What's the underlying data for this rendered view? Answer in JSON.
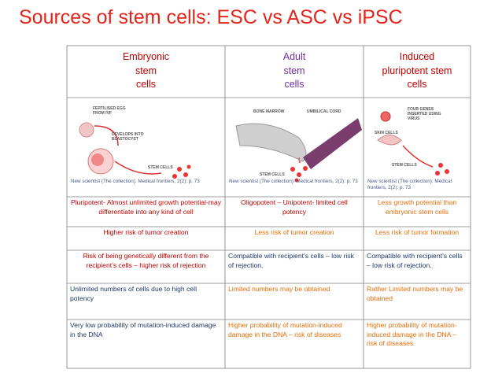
{
  "title": "Sources of stem cells: ESC vs ASC vs iPSC",
  "table": {
    "headers": [
      "Embryonic\nstem\ncells",
      "Adult\nstem\ncells",
      "Induced\npluripotent stem\ncells"
    ],
    "images": [
      {
        "labels": [
          "FERTILISED EGG\nFROM IVF",
          "DEVELOPS INTO\nBLASTOCYST",
          "STEM CELLS"
        ],
        "citation": "New scientist (The collection): Medical frontiers, 2(2): p. 73"
      },
      {
        "labels": [
          "BONE MARROW",
          "UMBILICAL CORD",
          "STEM CELLS"
        ],
        "citation": "New scientist (The collection): Medical frontiers, 2(2): p. 73"
      },
      {
        "labels": [
          "FOUR GENES\nINSERTED USING\nVIRUS",
          "SKIN CELLS",
          "STEM CELLS"
        ],
        "citation": "New scientist (The collection): Medical frontiers, 2(2): p. 73"
      }
    ],
    "rows": [
      [
        "Pluripotent- Almost unlimited growth potential-may differentiate into any kind of cell",
        "Oligopotent – Unipotent- limited cell potency",
        "Less growth potential than embryonic stem cells"
      ],
      [
        "Higher risk of tumor creation",
        "Less risk of tumor creation",
        "Less risk of tumor formation"
      ],
      [
        "Risk of being genetically different from the recipient’s cells – higher risk of rejection",
        "Compatible with recipient’s cells – low risk of rejection.",
        "Compatible with recipient’s cells – low risk of rejection."
      ],
      [
        "Unlimited numbers of cells due to high cell potency",
        "Limited numbers may be obtained",
        "Rather Limited numbers may be obtained"
      ],
      [
        "Very low probability of mutation-induced damage in the DNA",
        "Higher probability of mutation-induced damage in the DNA – risk of diseases",
        "Higher probability of mutation-induced damage in the DNA – risk of diseases"
      ]
    ]
  }
}
